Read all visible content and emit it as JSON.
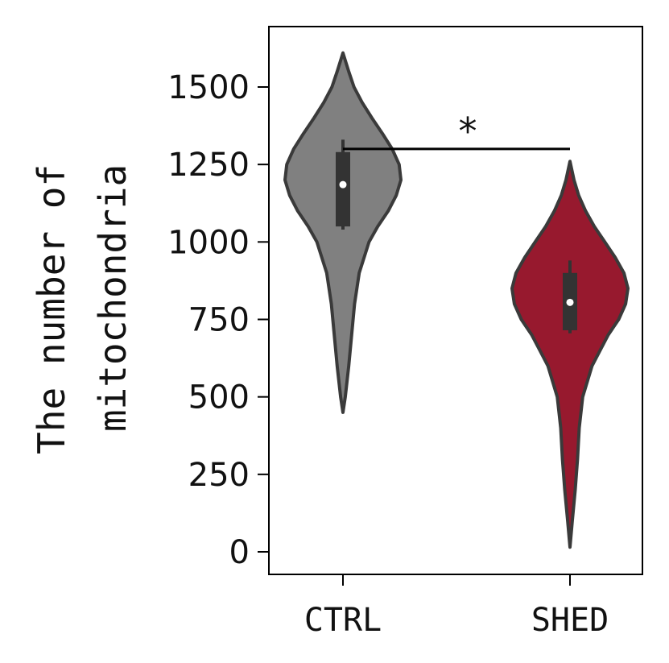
{
  "chart_data": {
    "type": "violin",
    "title": "",
    "xlabel": "",
    "ylabel_lines": [
      "The number of",
      "mitochondria"
    ],
    "ylim": [
      -50,
      1640
    ],
    "yticks": [
      0,
      250,
      500,
      750,
      1000,
      1250,
      1500
    ],
    "ytick_labels": [
      "0",
      "250",
      "500",
      "750",
      "1000",
      "1250",
      "1500"
    ],
    "categories": [
      "CTRL",
      "SHED"
    ],
    "colors": {
      "CTRL": "#808080",
      "SHED": "#97192e",
      "outline": "#3a3a3a",
      "box": "#333333",
      "median": "#ffffff"
    },
    "series": [
      {
        "category": "CTRL",
        "min": 450,
        "q1": 1050,
        "median": 1185,
        "q3": 1290,
        "max": 1610,
        "density_profile": [
          [
            450,
            0.0
          ],
          [
            500,
            0.04
          ],
          [
            600,
            0.1
          ],
          [
            700,
            0.15
          ],
          [
            800,
            0.2
          ],
          [
            900,
            0.28
          ],
          [
            1000,
            0.45
          ],
          [
            1050,
            0.6
          ],
          [
            1100,
            0.78
          ],
          [
            1150,
            0.92
          ],
          [
            1200,
            1.0
          ],
          [
            1250,
            0.97
          ],
          [
            1300,
            0.85
          ],
          [
            1350,
            0.68
          ],
          [
            1400,
            0.5
          ],
          [
            1450,
            0.33
          ],
          [
            1500,
            0.19
          ],
          [
            1550,
            0.1
          ],
          [
            1610,
            0.0
          ]
        ]
      },
      {
        "category": "SHED",
        "min": 15,
        "q1": 715,
        "median": 805,
        "q3": 900,
        "max": 1260,
        "density_profile": [
          [
            15,
            0.0
          ],
          [
            100,
            0.04
          ],
          [
            200,
            0.09
          ],
          [
            300,
            0.13
          ],
          [
            400,
            0.16
          ],
          [
            500,
            0.22
          ],
          [
            600,
            0.38
          ],
          [
            650,
            0.52
          ],
          [
            700,
            0.66
          ],
          [
            750,
            0.84
          ],
          [
            800,
            0.96
          ],
          [
            850,
            1.0
          ],
          [
            900,
            0.93
          ],
          [
            950,
            0.78
          ],
          [
            1000,
            0.6
          ],
          [
            1050,
            0.42
          ],
          [
            1100,
            0.27
          ],
          [
            1150,
            0.15
          ],
          [
            1200,
            0.07
          ],
          [
            1260,
            0.0
          ]
        ]
      }
    ],
    "significance": {
      "from": "CTRL",
      "to": "SHED",
      "y": 1300,
      "label": "*"
    }
  }
}
